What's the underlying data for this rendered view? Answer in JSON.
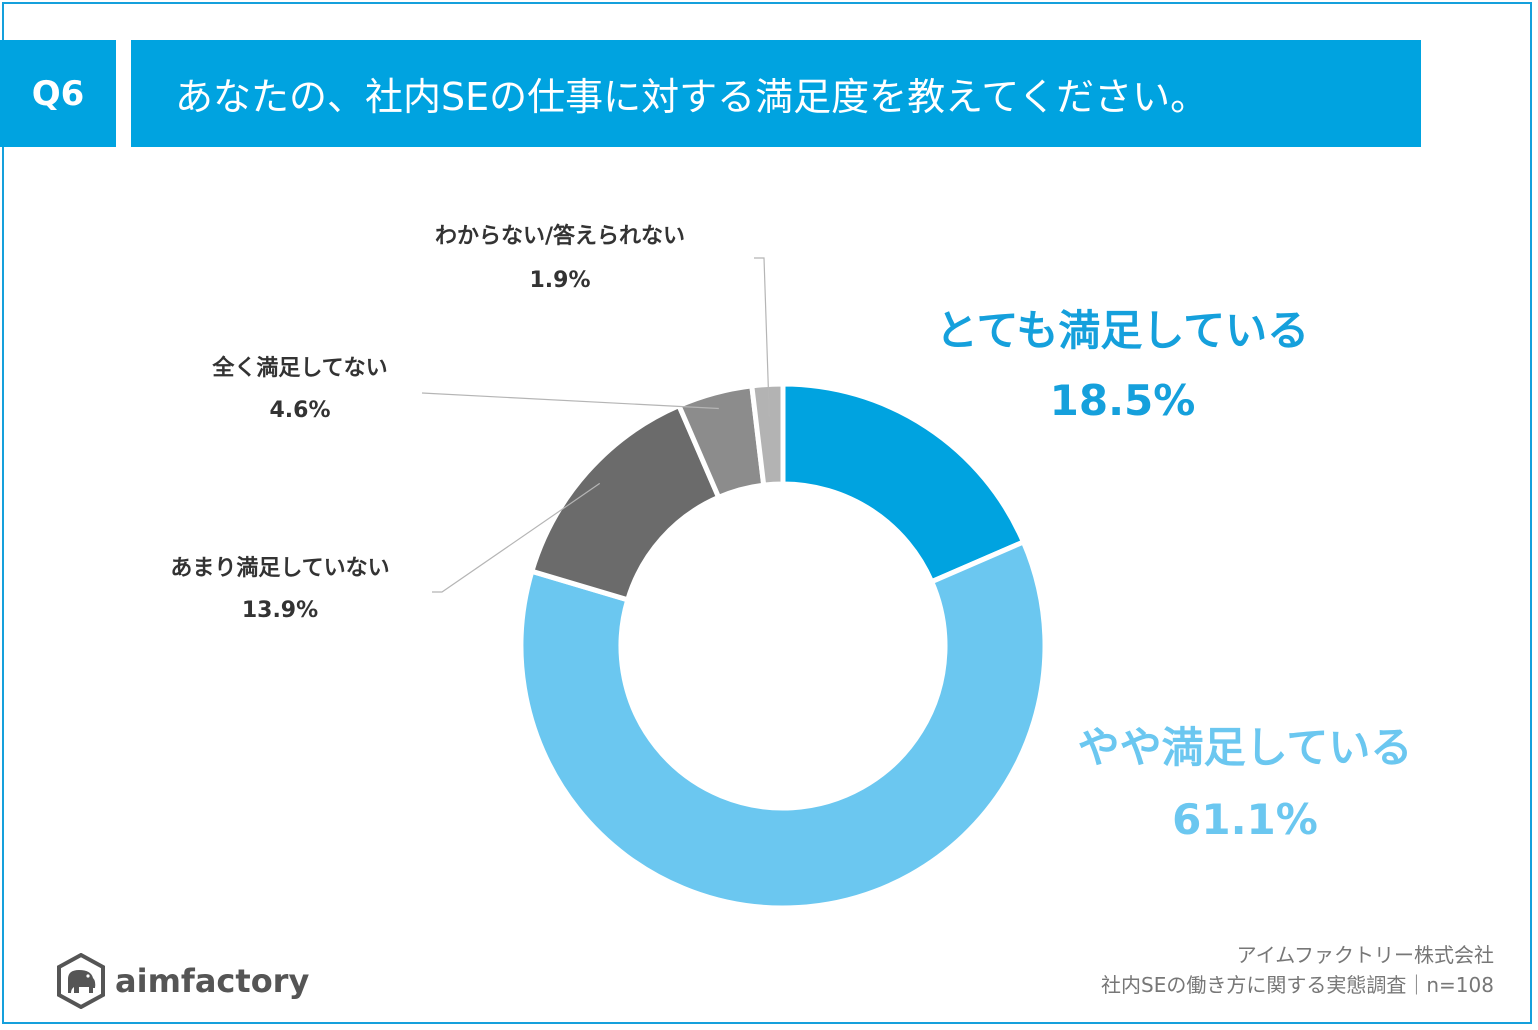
{
  "header": {
    "question_no": "Q6",
    "title": "あなたの、社内SEの仕事に対する満足度を教えてください。"
  },
  "chart_data": {
    "type": "pie",
    "title": "あなたの、社内SEの仕事に対する満足度を教えてください。",
    "donut": true,
    "categories": [
      "とても満足している",
      "やや満足している",
      "あまり満足していない",
      "全く満足してない",
      "わからない/答えられない"
    ],
    "values": [
      18.5,
      61.1,
      13.9,
      4.6,
      1.9
    ],
    "value_labels": [
      "18.5%",
      "61.1%",
      "13.9%",
      "4.6%",
      "1.9%"
    ],
    "colors": [
      "#00a3e0",
      "#6bc7f0",
      "#6b6b6b",
      "#8c8c8c",
      "#b3b3b3"
    ],
    "label_colors": [
      "#15a0dc",
      "#6bc7f0",
      "#333333",
      "#333333",
      "#333333"
    ]
  },
  "brand": {
    "logo_text": "aimfactory",
    "logo_icon": "elephant-icon"
  },
  "source": {
    "company": "アイムファクトリー株式会社",
    "survey": "社内SEの働き方に関する実態調査｜n=108"
  }
}
